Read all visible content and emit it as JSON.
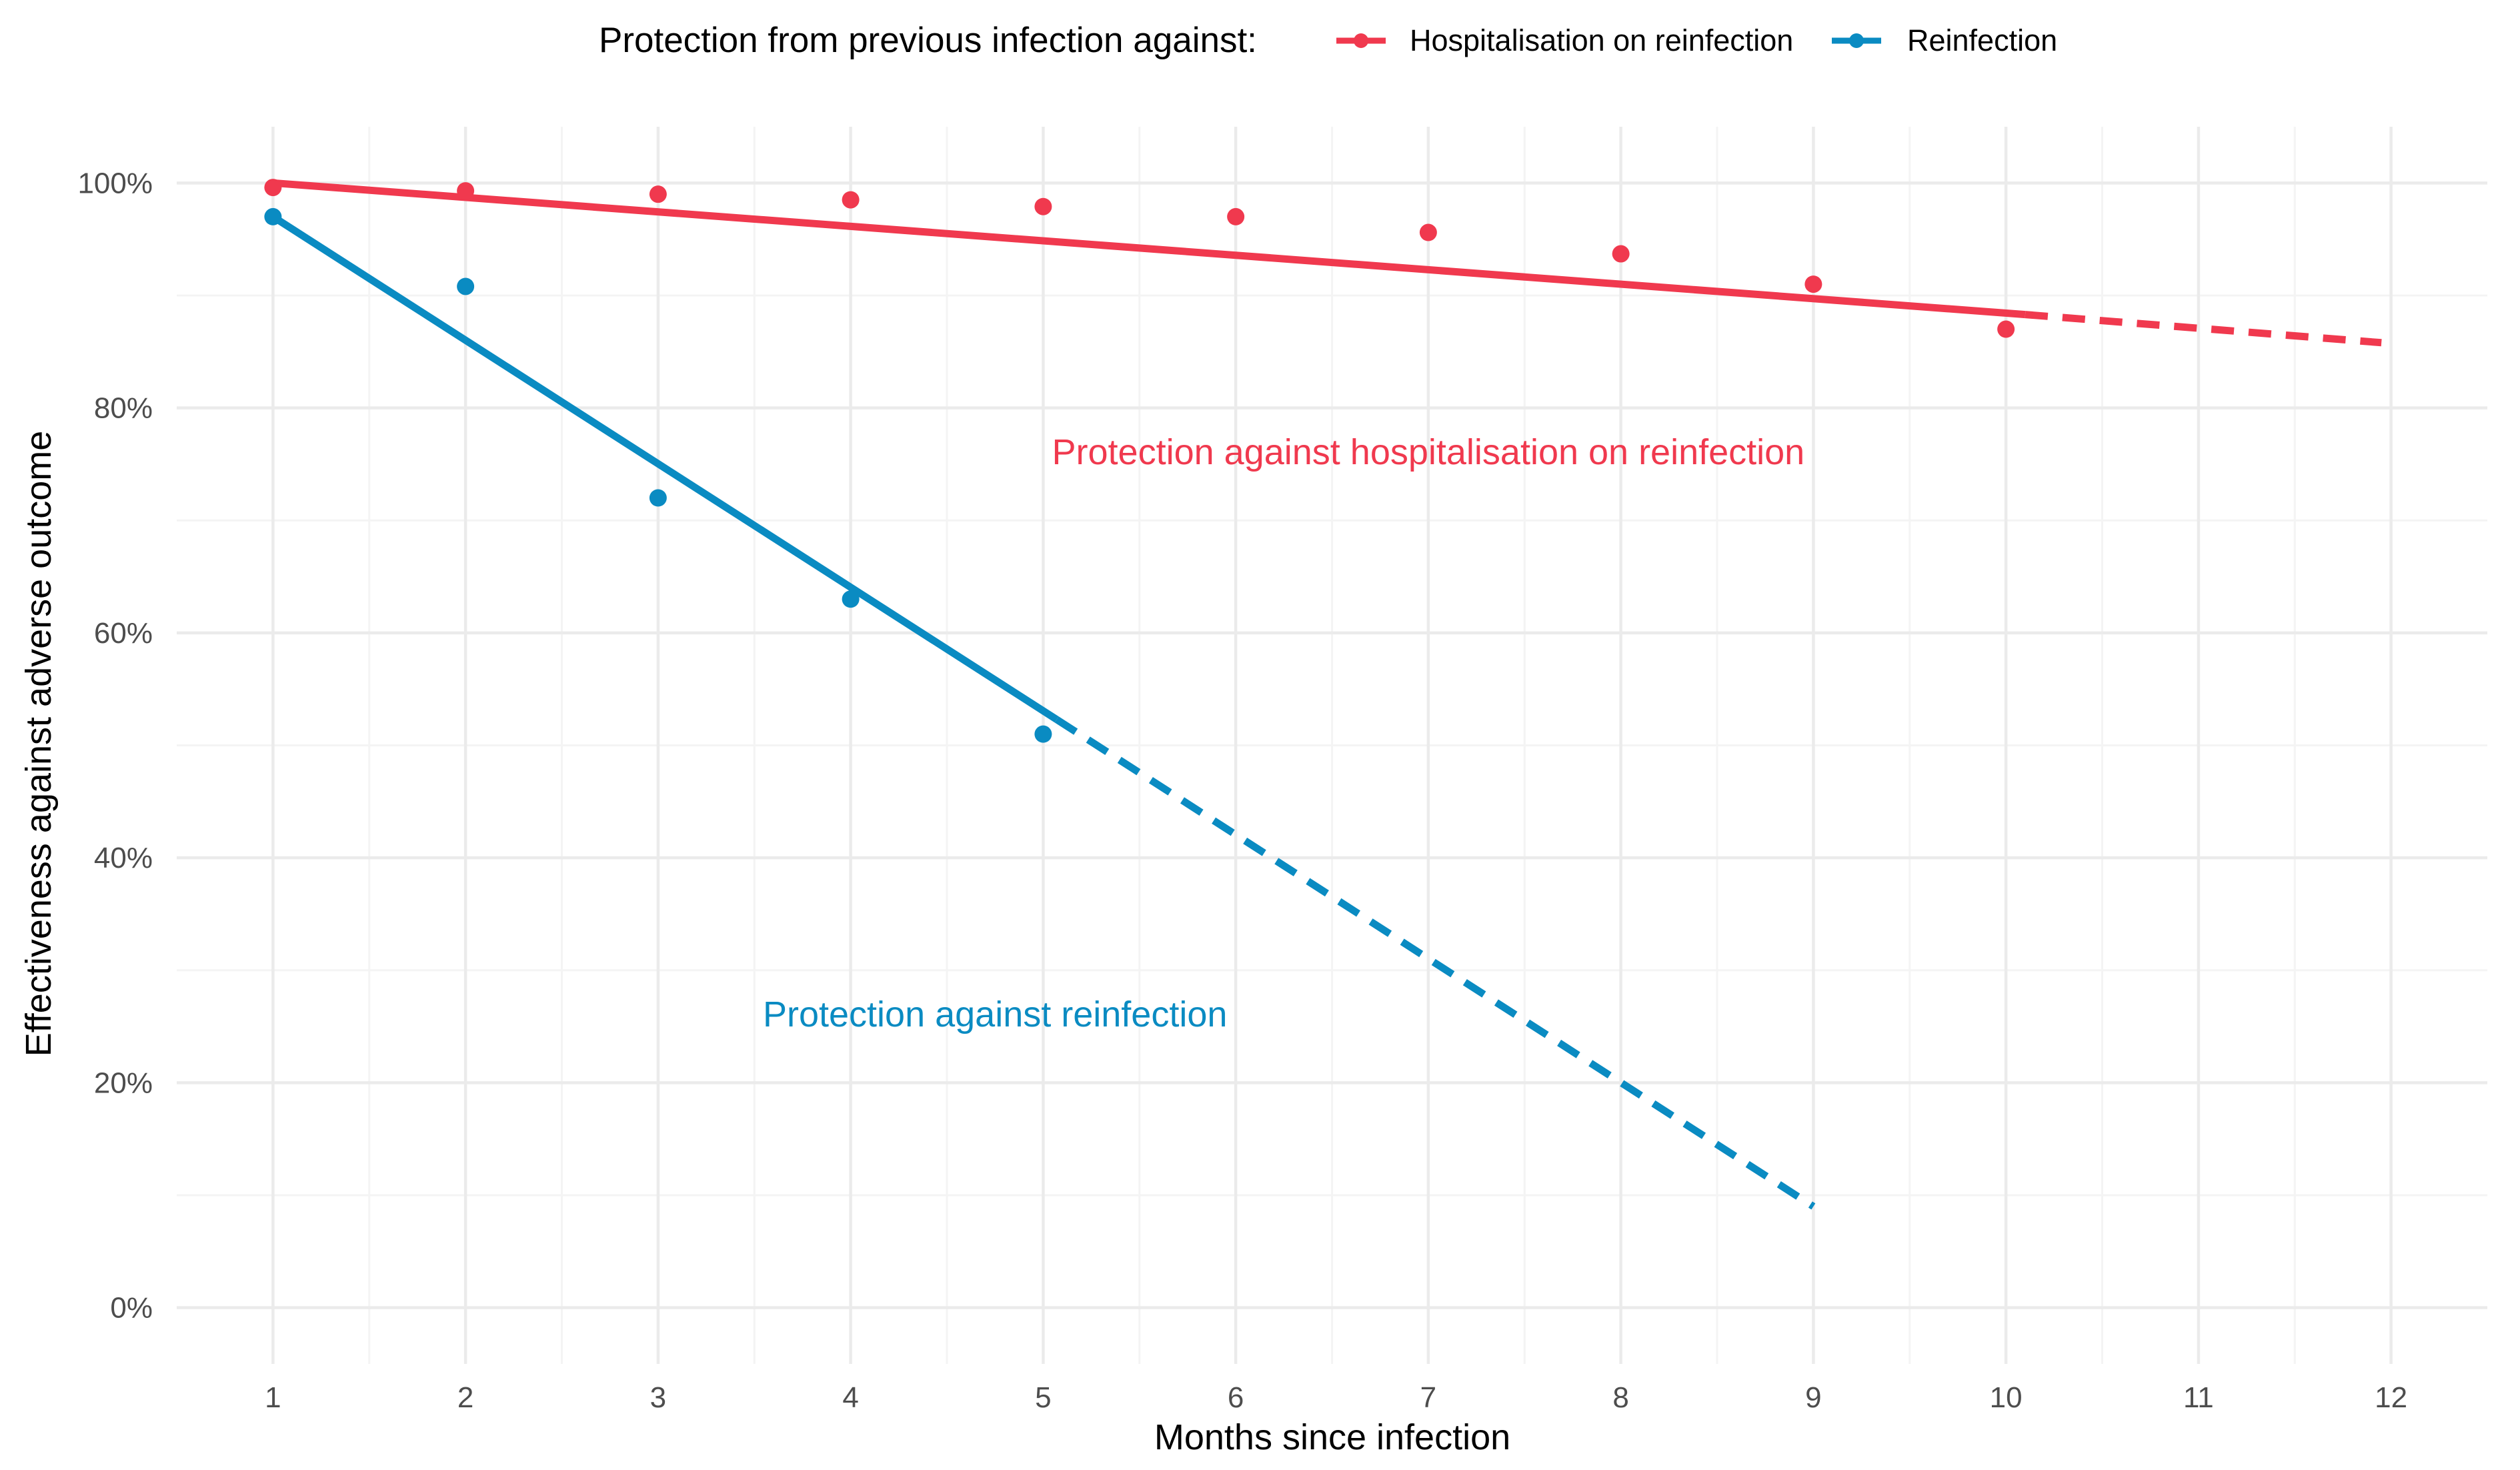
{
  "chart_data": {
    "type": "line",
    "title": "",
    "xlabel": "Months since infection",
    "ylabel": "Effectiveness against adverse outcome",
    "xlim": [
      0.5,
      12.5
    ],
    "ylim": [
      -5,
      105
    ],
    "x_ticks": [
      1,
      2,
      3,
      4,
      5,
      6,
      7,
      8,
      9,
      10,
      11,
      12
    ],
    "x_tick_labels": [
      "1",
      "2",
      "3",
      "4",
      "5",
      "6",
      "7",
      "8",
      "9",
      "10",
      "11",
      "12"
    ],
    "y_ticks": [
      0,
      20,
      40,
      60,
      80,
      100
    ],
    "y_tick_labels": [
      "0%",
      "20%",
      "40%",
      "60%",
      "80%",
      "100%"
    ],
    "grid": true,
    "legend": {
      "title": "Protection from previous infection against:",
      "position": "top",
      "entries": [
        "Hospitalisation on reinfection",
        "Reinfection"
      ]
    },
    "series": [
      {
        "name": "Hospitalisation on reinfection",
        "color": "#f0394e",
        "points": {
          "x": [
            1,
            2,
            3,
            4,
            5,
            6,
            7,
            8,
            9,
            10
          ],
          "y": [
            99.6,
            99.3,
            99.0,
            98.5,
            97.9,
            97.0,
            95.6,
            93.7,
            91.0,
            87.0
          ]
        },
        "fit_solid": {
          "x": [
            1,
            10.1
          ],
          "y": [
            100,
            88.3
          ]
        },
        "fit_dashed": {
          "x": [
            10.1,
            11.95
          ],
          "y": [
            88.3,
            85.8
          ]
        },
        "annotation": {
          "text": "Protection against hospitalisation on reinfection",
          "x": 7.0,
          "y": 75
        }
      },
      {
        "name": "Reinfection",
        "color": "#0a8bc2",
        "points": {
          "x": [
            1,
            2,
            3,
            4,
            5
          ],
          "y": [
            97.0,
            90.8,
            72.0,
            63.0,
            51.0
          ]
        },
        "fit_solid": {
          "x": [
            1,
            5.07
          ],
          "y": [
            97.0,
            52.3
          ]
        },
        "fit_dashed": {
          "x": [
            5.07,
            9.0
          ],
          "y": [
            52.3,
            9.0
          ]
        },
        "annotation": {
          "text": "Protection against reinfection",
          "x": 4.75,
          "y": 25
        }
      }
    ]
  }
}
